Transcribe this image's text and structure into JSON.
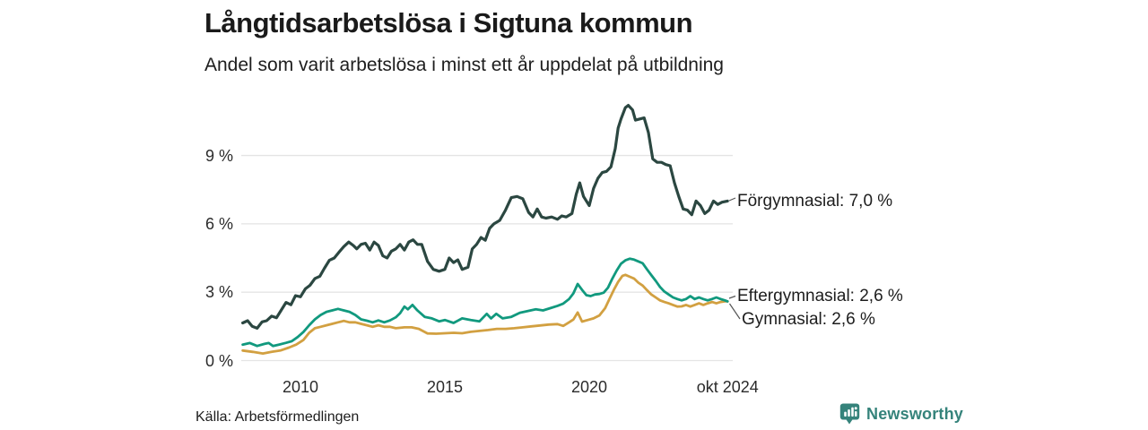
{
  "header": {
    "title": "Långtidsarbetslösa i Sigtuna kommun",
    "subtitle": "Andel som varit arbetslösa i minst ett år uppdelat på utbildning"
  },
  "footer": {
    "source": "Källa: Arbetsförmedlingen",
    "brand": "Newsworthy",
    "brand_color": "#35837b"
  },
  "colors": {
    "forgymnasial": "#2b4741",
    "eftergymnasial": "#11997e",
    "gymnasial": "#d2a041",
    "gridline": "#e4e4e4",
    "connector": "#555555",
    "text": "#1d1d1d"
  },
  "chart_data": {
    "type": "line",
    "title": "Långtidsarbetslösa i Sigtuna kommun",
    "subtitle": "Andel som varit arbetslösa i minst ett år uppdelat på utbildning",
    "xlabel": "",
    "ylabel": "",
    "xlim": [
      2008,
      2024.83
    ],
    "ylim": [
      0,
      12
    ],
    "grid": true,
    "legend_position": "end-of-line-labels",
    "y_axis": {
      "ticks": [
        {
          "value": 0,
          "label": "0 %"
        },
        {
          "value": 3,
          "label": "3 %"
        },
        {
          "value": 6,
          "label": "6 %"
        },
        {
          "value": 9,
          "label": "9 %"
        }
      ]
    },
    "x_axis": {
      "ticks": [
        {
          "value": 2010,
          "label": "2010"
        },
        {
          "value": 2015,
          "label": "2015"
        },
        {
          "value": 2020,
          "label": "2020"
        },
        {
          "value": 2024.79,
          "label": "okt 2024"
        }
      ]
    },
    "series": [
      {
        "name": "Förgymnasial",
        "end_label": "Förgymnasial: 7,0 %",
        "end_value": "7,0 %",
        "color": "#2b4741",
        "points": [
          [
            2008.0,
            1.65
          ],
          [
            2008.17,
            1.75
          ],
          [
            2008.33,
            1.5
          ],
          [
            2008.5,
            1.42
          ],
          [
            2008.67,
            1.7
          ],
          [
            2008.83,
            1.75
          ],
          [
            2009.0,
            1.95
          ],
          [
            2009.17,
            1.88
          ],
          [
            2009.33,
            2.2
          ],
          [
            2009.5,
            2.55
          ],
          [
            2009.67,
            2.45
          ],
          [
            2009.83,
            2.85
          ],
          [
            2010.0,
            2.8
          ],
          [
            2010.17,
            3.15
          ],
          [
            2010.33,
            3.3
          ],
          [
            2010.5,
            3.6
          ],
          [
            2010.67,
            3.7
          ],
          [
            2010.83,
            4.05
          ],
          [
            2011.0,
            4.4
          ],
          [
            2011.17,
            4.5
          ],
          [
            2011.33,
            4.75
          ],
          [
            2011.5,
            5.0
          ],
          [
            2011.67,
            5.2
          ],
          [
            2011.83,
            5.05
          ],
          [
            2011.95,
            4.9
          ],
          [
            2012.1,
            5.1
          ],
          [
            2012.25,
            5.15
          ],
          [
            2012.4,
            4.85
          ],
          [
            2012.55,
            5.2
          ],
          [
            2012.7,
            5.05
          ],
          [
            2012.85,
            4.6
          ],
          [
            2013.0,
            4.5
          ],
          [
            2013.15,
            4.8
          ],
          [
            2013.3,
            4.9
          ],
          [
            2013.45,
            5.1
          ],
          [
            2013.6,
            4.85
          ],
          [
            2013.75,
            5.2
          ],
          [
            2013.9,
            5.3
          ],
          [
            2014.05,
            5.1
          ],
          [
            2014.2,
            5.1
          ],
          [
            2014.4,
            4.35
          ],
          [
            2014.6,
            4.0
          ],
          [
            2014.8,
            3.92
          ],
          [
            2015.0,
            4.0
          ],
          [
            2015.15,
            4.5
          ],
          [
            2015.3,
            4.3
          ],
          [
            2015.45,
            4.42
          ],
          [
            2015.6,
            4.0
          ],
          [
            2015.8,
            4.1
          ],
          [
            2015.95,
            4.9
          ],
          [
            2016.1,
            5.1
          ],
          [
            2016.25,
            5.4
          ],
          [
            2016.4,
            5.28
          ],
          [
            2016.55,
            5.8
          ],
          [
            2016.7,
            6.0
          ],
          [
            2016.9,
            6.15
          ],
          [
            2017.1,
            6.6
          ],
          [
            2017.3,
            7.15
          ],
          [
            2017.5,
            7.2
          ],
          [
            2017.7,
            7.1
          ],
          [
            2017.9,
            6.5
          ],
          [
            2018.05,
            6.3
          ],
          [
            2018.2,
            6.65
          ],
          [
            2018.35,
            6.3
          ],
          [
            2018.5,
            6.25
          ],
          [
            2018.7,
            6.3
          ],
          [
            2018.9,
            6.2
          ],
          [
            2019.05,
            6.35
          ],
          [
            2019.2,
            6.3
          ],
          [
            2019.4,
            6.45
          ],
          [
            2019.55,
            7.3
          ],
          [
            2019.67,
            7.8
          ],
          [
            2019.8,
            7.2
          ],
          [
            2020.0,
            6.8
          ],
          [
            2020.15,
            7.55
          ],
          [
            2020.3,
            8.0
          ],
          [
            2020.45,
            8.25
          ],
          [
            2020.6,
            8.3
          ],
          [
            2020.75,
            8.5
          ],
          [
            2020.9,
            9.3
          ],
          [
            2021.0,
            10.2
          ],
          [
            2021.1,
            10.6
          ],
          [
            2021.25,
            11.1
          ],
          [
            2021.35,
            11.2
          ],
          [
            2021.5,
            11.0
          ],
          [
            2021.6,
            10.55
          ],
          [
            2021.75,
            10.6
          ],
          [
            2021.9,
            10.65
          ],
          [
            2022.05,
            10.0
          ],
          [
            2022.2,
            8.85
          ],
          [
            2022.35,
            8.7
          ],
          [
            2022.5,
            8.7
          ],
          [
            2022.65,
            8.6
          ],
          [
            2022.8,
            8.55
          ],
          [
            2022.95,
            7.8
          ],
          [
            2023.1,
            7.2
          ],
          [
            2023.25,
            6.65
          ],
          [
            2023.4,
            6.6
          ],
          [
            2023.55,
            6.4
          ],
          [
            2023.7,
            7.0
          ],
          [
            2023.85,
            6.8
          ],
          [
            2024.0,
            6.45
          ],
          [
            2024.15,
            6.6
          ],
          [
            2024.3,
            7.0
          ],
          [
            2024.45,
            6.85
          ],
          [
            2024.6,
            6.95
          ],
          [
            2024.79,
            7.0
          ]
        ]
      },
      {
        "name": "Gymnasial",
        "end_label": "Gymnasial: 2,6 %",
        "end_value": "2,6 %",
        "color": "#d2a041",
        "points": [
          [
            2008.0,
            0.44
          ],
          [
            2008.35,
            0.38
          ],
          [
            2008.7,
            0.31
          ],
          [
            2009.0,
            0.38
          ],
          [
            2009.3,
            0.44
          ],
          [
            2009.6,
            0.57
          ],
          [
            2009.85,
            0.7
          ],
          [
            2010.1,
            0.9
          ],
          [
            2010.3,
            1.22
          ],
          [
            2010.5,
            1.42
          ],
          [
            2010.7,
            1.48
          ],
          [
            2010.9,
            1.55
          ],
          [
            2011.1,
            1.61
          ],
          [
            2011.3,
            1.68
          ],
          [
            2011.5,
            1.74
          ],
          [
            2011.7,
            1.68
          ],
          [
            2011.9,
            1.68
          ],
          [
            2012.1,
            1.61
          ],
          [
            2012.3,
            1.55
          ],
          [
            2012.5,
            1.48
          ],
          [
            2012.7,
            1.55
          ],
          [
            2012.9,
            1.48
          ],
          [
            2013.1,
            1.48
          ],
          [
            2013.3,
            1.42
          ],
          [
            2013.6,
            1.46
          ],
          [
            2013.85,
            1.46
          ],
          [
            2014.1,
            1.39
          ],
          [
            2014.4,
            1.19
          ],
          [
            2014.7,
            1.18
          ],
          [
            2015.0,
            1.2
          ],
          [
            2015.3,
            1.22
          ],
          [
            2015.6,
            1.2
          ],
          [
            2015.9,
            1.26
          ],
          [
            2016.2,
            1.3
          ],
          [
            2016.5,
            1.34
          ],
          [
            2016.8,
            1.39
          ],
          [
            2017.1,
            1.39
          ],
          [
            2017.4,
            1.42
          ],
          [
            2017.7,
            1.46
          ],
          [
            2018.0,
            1.5
          ],
          [
            2018.3,
            1.54
          ],
          [
            2018.6,
            1.58
          ],
          [
            2018.9,
            1.6
          ],
          [
            2019.1,
            1.52
          ],
          [
            2019.3,
            1.68
          ],
          [
            2019.45,
            1.8
          ],
          [
            2019.6,
            2.11
          ],
          [
            2019.75,
            1.71
          ],
          [
            2019.95,
            1.78
          ],
          [
            2020.15,
            1.85
          ],
          [
            2020.35,
            1.98
          ],
          [
            2020.55,
            2.3
          ],
          [
            2020.7,
            2.7
          ],
          [
            2020.85,
            3.1
          ],
          [
            2021.0,
            3.45
          ],
          [
            2021.15,
            3.72
          ],
          [
            2021.25,
            3.76
          ],
          [
            2021.4,
            3.68
          ],
          [
            2021.55,
            3.6
          ],
          [
            2021.7,
            3.42
          ],
          [
            2021.85,
            3.29
          ],
          [
            2022.0,
            3.09
          ],
          [
            2022.15,
            2.9
          ],
          [
            2022.3,
            2.77
          ],
          [
            2022.45,
            2.64
          ],
          [
            2022.6,
            2.57
          ],
          [
            2022.75,
            2.51
          ],
          [
            2022.9,
            2.44
          ],
          [
            2023.05,
            2.37
          ],
          [
            2023.2,
            2.38
          ],
          [
            2023.35,
            2.44
          ],
          [
            2023.5,
            2.37
          ],
          [
            2023.65,
            2.44
          ],
          [
            2023.8,
            2.51
          ],
          [
            2023.95,
            2.44
          ],
          [
            2024.1,
            2.51
          ],
          [
            2024.25,
            2.57
          ],
          [
            2024.4,
            2.51
          ],
          [
            2024.55,
            2.57
          ],
          [
            2024.7,
            2.6
          ],
          [
            2024.79,
            2.6
          ]
        ]
      },
      {
        "name": "Eftergymnasial",
        "end_label": "Eftergymnasial: 2,6 %",
        "end_value": "2,6 %",
        "color": "#11997e",
        "points": [
          [
            2008.0,
            0.7
          ],
          [
            2008.25,
            0.77
          ],
          [
            2008.5,
            0.64
          ],
          [
            2008.75,
            0.73
          ],
          [
            2008.9,
            0.77
          ],
          [
            2009.05,
            0.64
          ],
          [
            2009.25,
            0.7
          ],
          [
            2009.5,
            0.78
          ],
          [
            2009.7,
            0.85
          ],
          [
            2009.9,
            1.03
          ],
          [
            2010.1,
            1.25
          ],
          [
            2010.3,
            1.55
          ],
          [
            2010.5,
            1.81
          ],
          [
            2010.7,
            2.0
          ],
          [
            2010.9,
            2.14
          ],
          [
            2011.1,
            2.2
          ],
          [
            2011.3,
            2.27
          ],
          [
            2011.5,
            2.2
          ],
          [
            2011.7,
            2.14
          ],
          [
            2011.9,
            2.0
          ],
          [
            2012.1,
            1.81
          ],
          [
            2012.3,
            1.75
          ],
          [
            2012.5,
            1.68
          ],
          [
            2012.7,
            1.76
          ],
          [
            2012.9,
            1.68
          ],
          [
            2013.1,
            1.76
          ],
          [
            2013.3,
            1.9
          ],
          [
            2013.45,
            2.08
          ],
          [
            2013.6,
            2.37
          ],
          [
            2013.72,
            2.25
          ],
          [
            2013.88,
            2.44
          ],
          [
            2014.05,
            2.2
          ],
          [
            2014.3,
            1.92
          ],
          [
            2014.55,
            1.85
          ],
          [
            2014.8,
            1.72
          ],
          [
            2015.0,
            1.78
          ],
          [
            2015.3,
            1.65
          ],
          [
            2015.6,
            1.85
          ],
          [
            2015.9,
            1.78
          ],
          [
            2016.2,
            1.72
          ],
          [
            2016.45,
            2.05
          ],
          [
            2016.6,
            1.85
          ],
          [
            2016.78,
            2.05
          ],
          [
            2017.0,
            1.85
          ],
          [
            2017.3,
            1.92
          ],
          [
            2017.6,
            2.1
          ],
          [
            2017.9,
            2.18
          ],
          [
            2018.15,
            2.25
          ],
          [
            2018.4,
            2.2
          ],
          [
            2018.65,
            2.3
          ],
          [
            2018.9,
            2.4
          ],
          [
            2019.1,
            2.5
          ],
          [
            2019.3,
            2.7
          ],
          [
            2019.45,
            2.95
          ],
          [
            2019.6,
            3.36
          ],
          [
            2019.75,
            3.1
          ],
          [
            2019.9,
            2.87
          ],
          [
            2020.05,
            2.83
          ],
          [
            2020.2,
            2.9
          ],
          [
            2020.35,
            2.92
          ],
          [
            2020.5,
            2.98
          ],
          [
            2020.65,
            3.2
          ],
          [
            2020.8,
            3.6
          ],
          [
            2020.95,
            3.95
          ],
          [
            2021.1,
            4.25
          ],
          [
            2021.25,
            4.4
          ],
          [
            2021.4,
            4.47
          ],
          [
            2021.55,
            4.43
          ],
          [
            2021.7,
            4.35
          ],
          [
            2021.85,
            4.27
          ],
          [
            2022.0,
            4.0
          ],
          [
            2022.15,
            3.75
          ],
          [
            2022.3,
            3.5
          ],
          [
            2022.45,
            3.23
          ],
          [
            2022.6,
            3.03
          ],
          [
            2022.75,
            2.9
          ],
          [
            2022.9,
            2.77
          ],
          [
            2023.05,
            2.7
          ],
          [
            2023.2,
            2.64
          ],
          [
            2023.35,
            2.7
          ],
          [
            2023.5,
            2.83
          ],
          [
            2023.65,
            2.7
          ],
          [
            2023.8,
            2.77
          ],
          [
            2023.95,
            2.7
          ],
          [
            2024.1,
            2.64
          ],
          [
            2024.25,
            2.7
          ],
          [
            2024.4,
            2.77
          ],
          [
            2024.55,
            2.7
          ],
          [
            2024.7,
            2.64
          ],
          [
            2024.79,
            2.6
          ]
        ]
      }
    ]
  }
}
